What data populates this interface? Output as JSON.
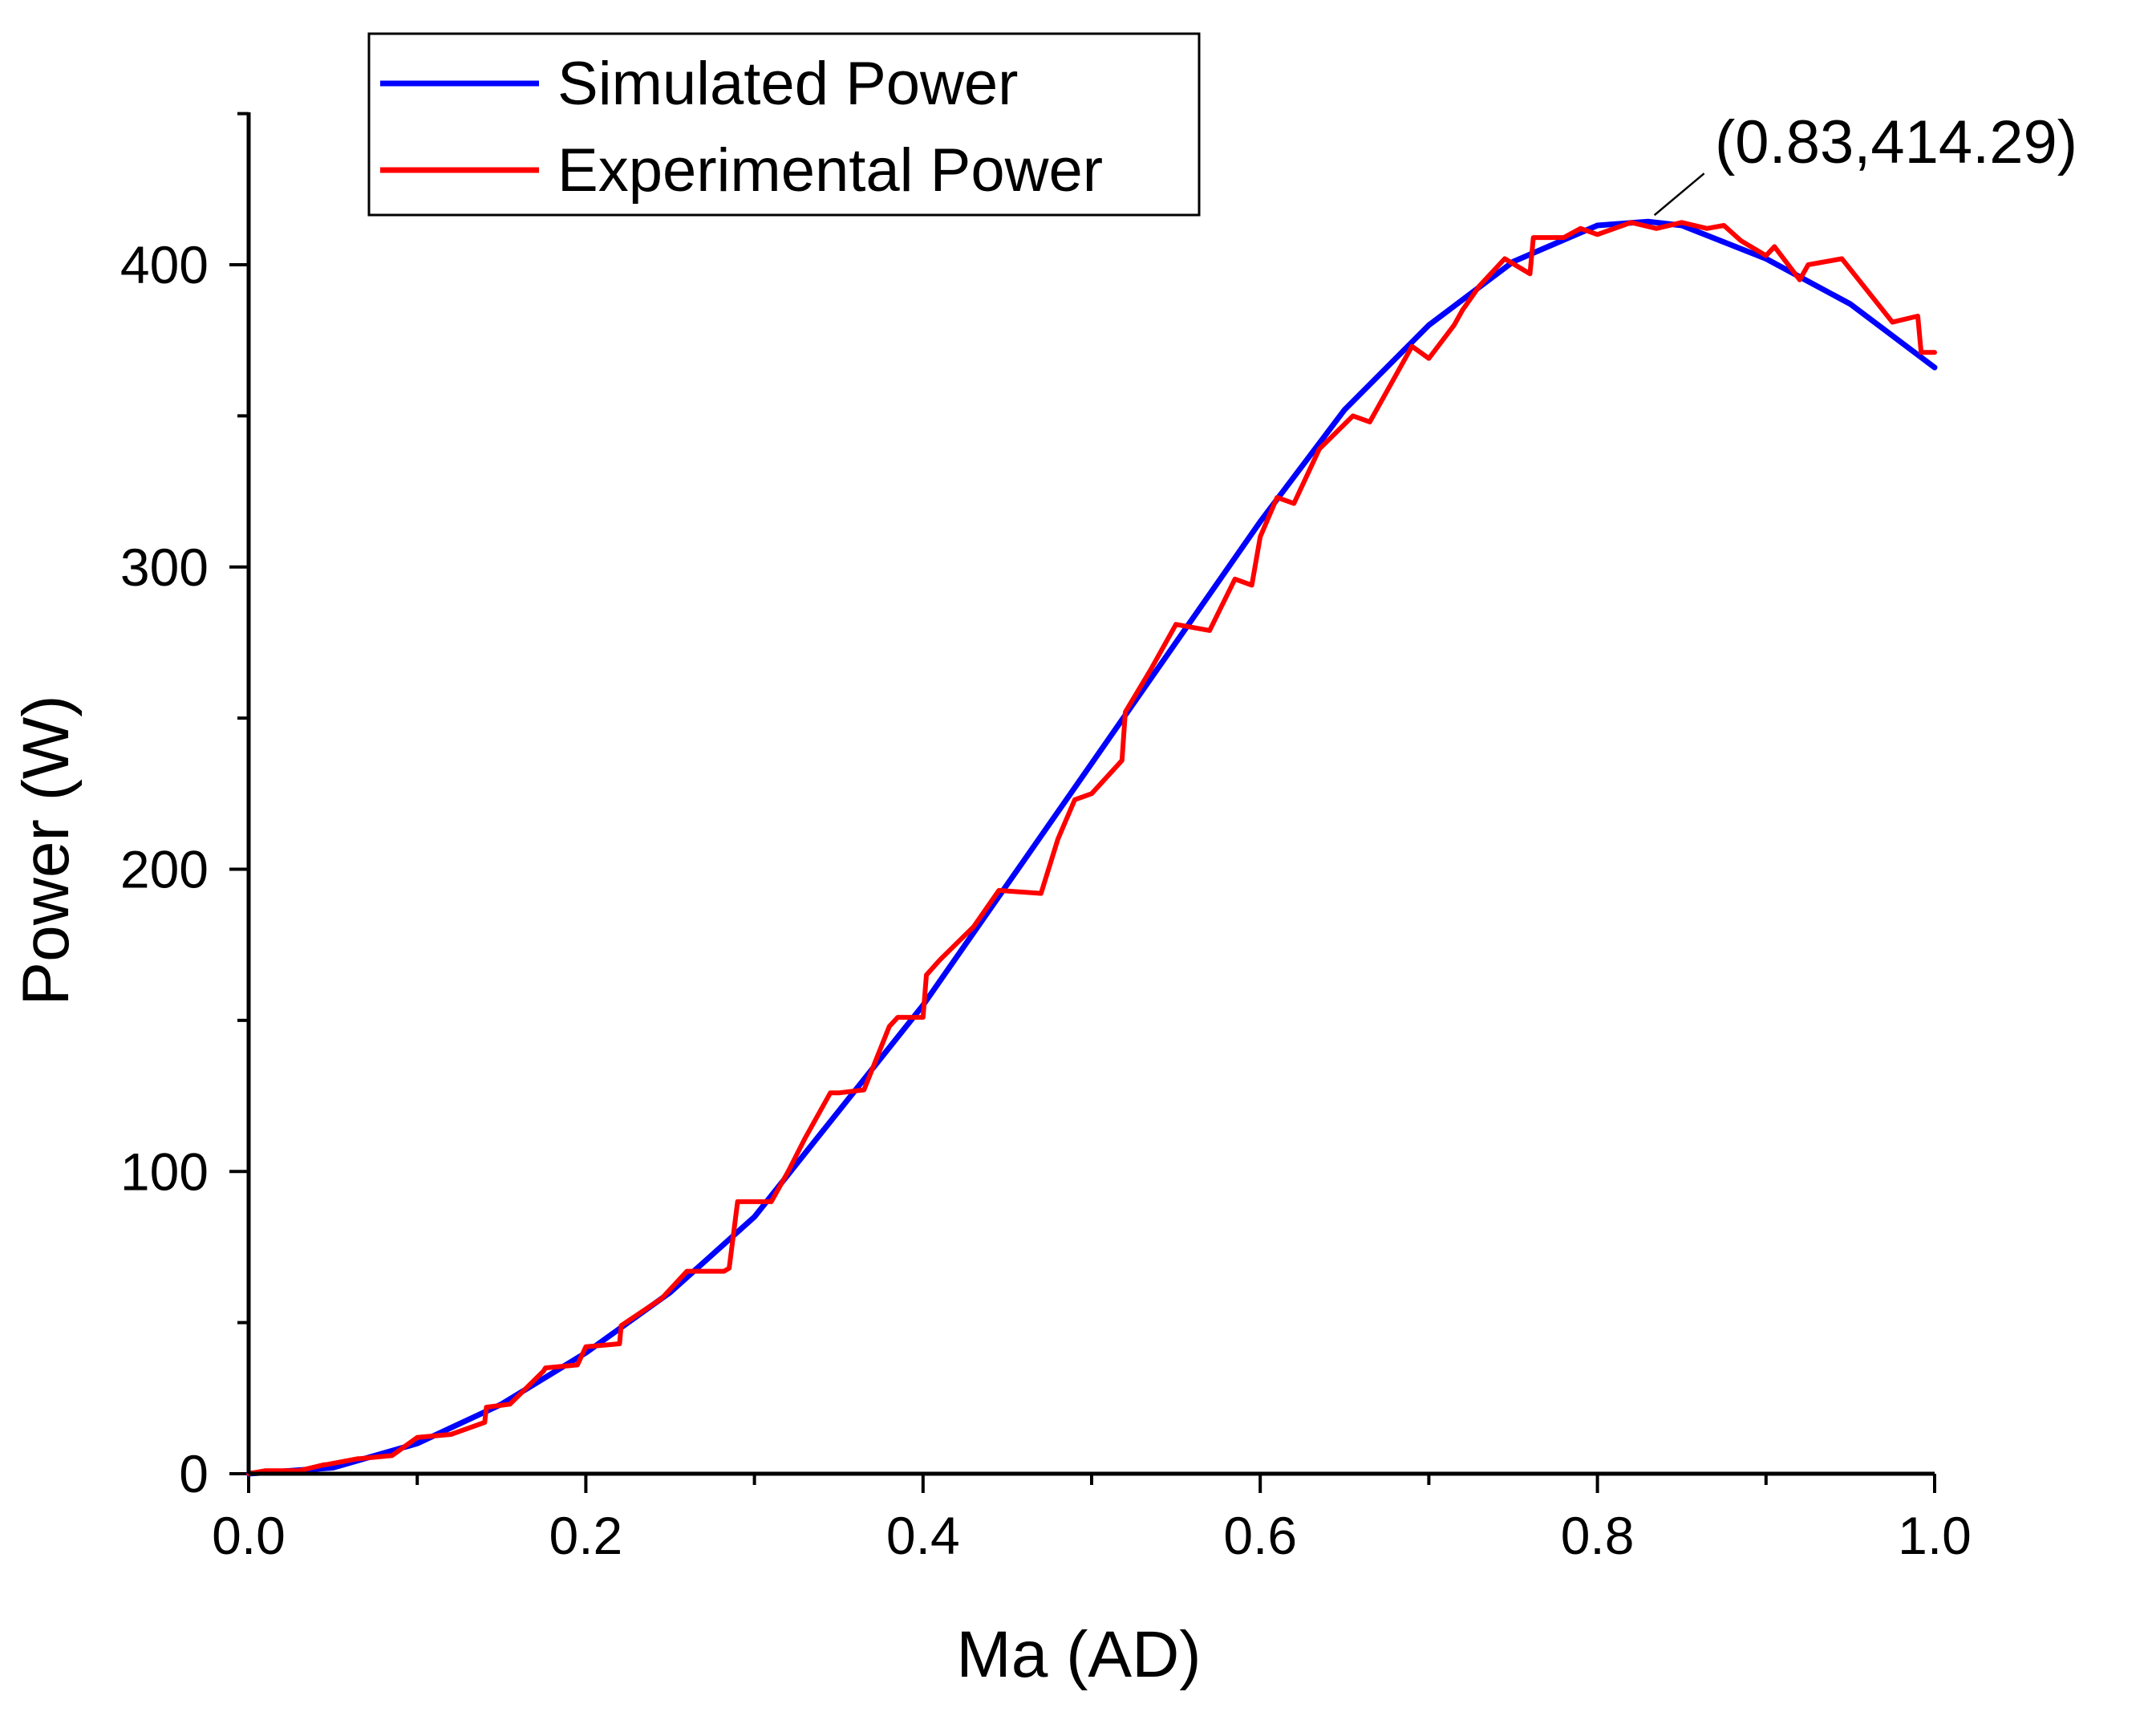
{
  "chart_data": {
    "type": "line",
    "title": "",
    "xlabel": "Ma (AD)",
    "ylabel": "Power (W)",
    "xlim": [
      0.0,
      1.0
    ],
    "ylim": [
      0,
      450
    ],
    "xticks": [
      0.0,
      0.2,
      0.4,
      0.6,
      0.8,
      1.0
    ],
    "xtick_labels": [
      "0.0",
      "0.2",
      "0.4",
      "0.6",
      "0.8",
      "1.0"
    ],
    "yticks": [
      0,
      100,
      200,
      300,
      400
    ],
    "ytick_labels": [
      "0",
      "100",
      "200",
      "300",
      "400"
    ],
    "grid": false,
    "legend_position": "top-left",
    "series": [
      {
        "name": "Simulated Power",
        "color": "#0000ff",
        "x": [
          0.0,
          0.05,
          0.1,
          0.15,
          0.2,
          0.25,
          0.3,
          0.35,
          0.4,
          0.45,
          0.5,
          0.55,
          0.6,
          0.65,
          0.7,
          0.75,
          0.8,
          0.83,
          0.85,
          0.9,
          0.95,
          1.0
        ],
        "y": [
          0,
          2,
          10,
          23,
          40,
          60,
          85,
          120,
          155,
          195,
          235,
          275,
          315,
          352,
          380,
          401,
          413,
          414.29,
          413,
          402,
          387,
          366
        ]
      },
      {
        "name": "Experimental Power",
        "color": "#ff0000",
        "x": [
          0.0,
          0.01,
          0.03,
          0.045,
          0.046,
          0.065,
          0.066,
          0.085,
          0.1,
          0.12,
          0.14,
          0.141,
          0.155,
          0.175,
          0.176,
          0.195,
          0.2,
          0.22,
          0.221,
          0.245,
          0.26,
          0.282,
          0.285,
          0.29,
          0.31,
          0.32,
          0.33,
          0.332,
          0.345,
          0.35,
          0.365,
          0.38,
          0.385,
          0.4,
          0.402,
          0.41,
          0.43,
          0.445,
          0.47,
          0.48,
          0.49,
          0.5,
          0.518,
          0.52,
          0.535,
          0.55,
          0.57,
          0.585,
          0.595,
          0.6,
          0.61,
          0.62,
          0.635,
          0.655,
          0.665,
          0.69,
          0.7,
          0.715,
          0.72,
          0.73,
          0.745,
          0.76,
          0.762,
          0.78,
          0.79,
          0.8,
          0.82,
          0.835,
          0.85,
          0.865,
          0.875,
          0.885,
          0.9,
          0.905,
          0.92,
          0.925,
          0.945,
          0.975,
          0.99,
          0.992,
          1.0
        ],
        "y": [
          0,
          1,
          1,
          3,
          3,
          5,
          5,
          6,
          12,
          13,
          17,
          22,
          23,
          34,
          35,
          36,
          42,
          43,
          49,
          58,
          67,
          67,
          68,
          90,
          90,
          100,
          111,
          113,
          126,
          126,
          127,
          148,
          151,
          151,
          165,
          170,
          181,
          193,
          192,
          210,
          223,
          225,
          236,
          252,
          266,
          281,
          279,
          296,
          294,
          310,
          323,
          321,
          339,
          350,
          348,
          373,
          369,
          380,
          385,
          393,
          402,
          397,
          409,
          409,
          412,
          410,
          414,
          412,
          414,
          412,
          413,
          408,
          403,
          406,
          395,
          400,
          402,
          381,
          383,
          371,
          371
        ]
      }
    ],
    "annotations": [
      {
        "text": "(0.83,414.29)",
        "x": 0.83,
        "y": 414.29
      }
    ]
  }
}
